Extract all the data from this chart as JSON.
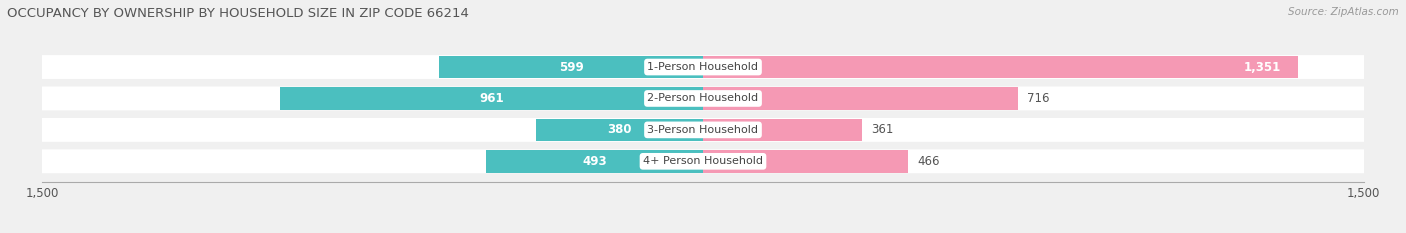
{
  "title": "OCCUPANCY BY OWNERSHIP BY HOUSEHOLD SIZE IN ZIP CODE 66214",
  "source": "Source: ZipAtlas.com",
  "categories": [
    "1-Person Household",
    "2-Person Household",
    "3-Person Household",
    "4+ Person Household"
  ],
  "owner_values": [
    599,
    961,
    380,
    493
  ],
  "renter_values": [
    1351,
    716,
    361,
    466
  ],
  "owner_color": "#4bbfbf",
  "renter_color": "#f599b4",
  "axis_max": 1500,
  "bar_height": 0.72,
  "background_color": "#f0f0f0",
  "row_bg_color": "#ffffff",
  "label_fontsize": 8.5,
  "title_fontsize": 9.5,
  "source_fontsize": 7.5,
  "cat_fontsize": 8.0,
  "val_fontsize": 8.5,
  "owner_label_inside_threshold": 300,
  "renter_label_inside_threshold": 800
}
